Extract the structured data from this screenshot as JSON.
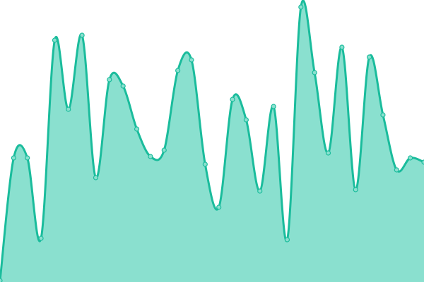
{
  "chart_data": {
    "type": "area",
    "title": "",
    "xlabel": "",
    "ylabel": "",
    "x": [
      0,
      1,
      2,
      3,
      4,
      5,
      6,
      7,
      8,
      9,
      10,
      11,
      12,
      13,
      14,
      15,
      16,
      17,
      18,
      19,
      20,
      21,
      22,
      23,
      24,
      25,
      26,
      27,
      28,
      29,
      30,
      31
    ],
    "values": [
      2,
      176,
      176,
      62,
      343,
      245,
      350,
      148,
      287,
      278,
      217,
      178,
      187,
      300,
      315,
      167,
      106,
      259,
      230,
      129,
      249,
      60,
      390,
      297,
      183,
      333,
      131,
      319,
      237,
      159,
      176,
      170
    ],
    "ylim": [
      0,
      400
    ],
    "grid": false,
    "axes_visible": false,
    "smooth": true,
    "show_points": true,
    "colors": {
      "line": "#1abc9c",
      "fill": "#8ae0cf",
      "point_fill": "#8ae0cf"
    }
  }
}
